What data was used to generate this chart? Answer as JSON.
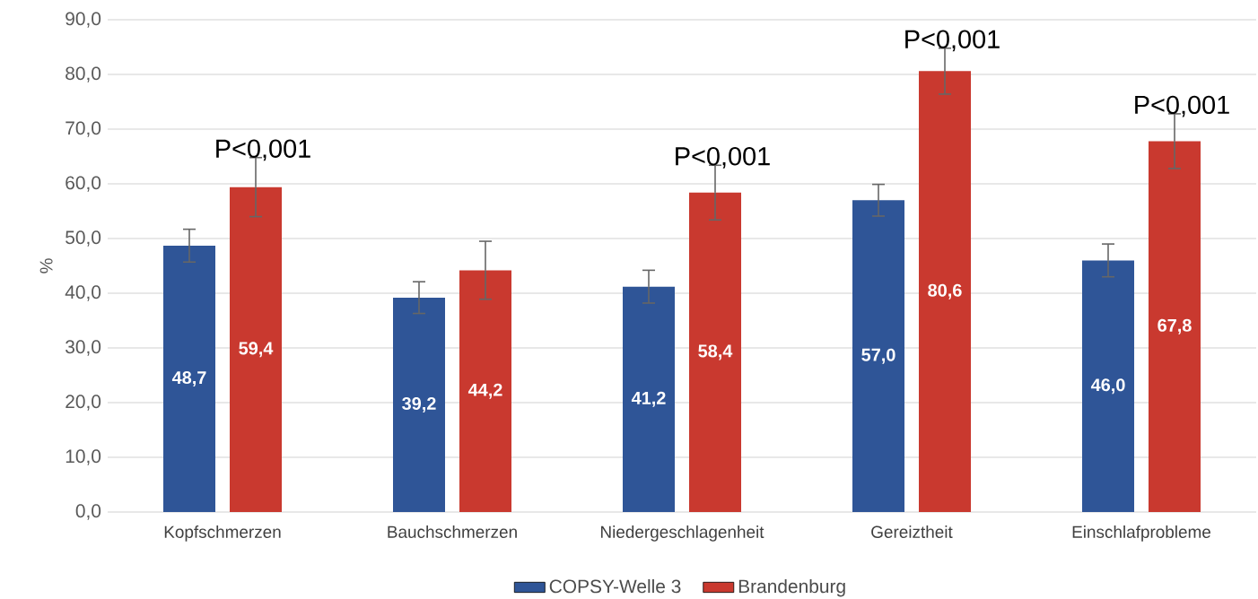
{
  "chart_data": {
    "type": "bar",
    "ylabel": "%",
    "categories": [
      "Kopfschmerzen",
      "Bauchschmerzen",
      "Niedergeschlagenheit",
      "Gereiztheit",
      "Einschlafprobleme"
    ],
    "series": [
      {
        "name": "COPSY-Welle 3",
        "color": "#2f5597",
        "values": [
          48.7,
          39.2,
          41.2,
          57.0,
          46.0
        ],
        "errors": [
          3.0,
          2.9,
          3.0,
          2.9,
          3.0
        ],
        "value_labels": [
          "48,7",
          "39,2",
          "41,2",
          "57,0",
          "46,0"
        ]
      },
      {
        "name": "Brandenburg",
        "color": "#c9392f",
        "values": [
          59.4,
          44.2,
          58.4,
          80.6,
          67.8
        ],
        "errors": [
          5.4,
          5.3,
          5.0,
          4.2,
          5.0
        ],
        "value_labels": [
          "59,4",
          "44,2",
          "58,4",
          "80,6",
          "67,8"
        ]
      }
    ],
    "ylim": [
      0,
      90
    ],
    "yticks": [
      {
        "value": 0,
        "label": "0,0"
      },
      {
        "value": 10,
        "label": "10,0"
      },
      {
        "value": 20,
        "label": "20,0"
      },
      {
        "value": 30,
        "label": "30,0"
      },
      {
        "value": 40,
        "label": "40,0"
      },
      {
        "value": 50,
        "label": "50,0"
      },
      {
        "value": 60,
        "label": "60,0"
      },
      {
        "value": 70,
        "label": "70,0"
      },
      {
        "value": 80,
        "label": "80,0"
      },
      {
        "value": 90,
        "label": "90,0"
      }
    ],
    "grid": "y",
    "legend": "bottom",
    "annotations": [
      "P<0,001",
      "P<0,001",
      "P<0,001",
      "P<0,001"
    ]
  }
}
